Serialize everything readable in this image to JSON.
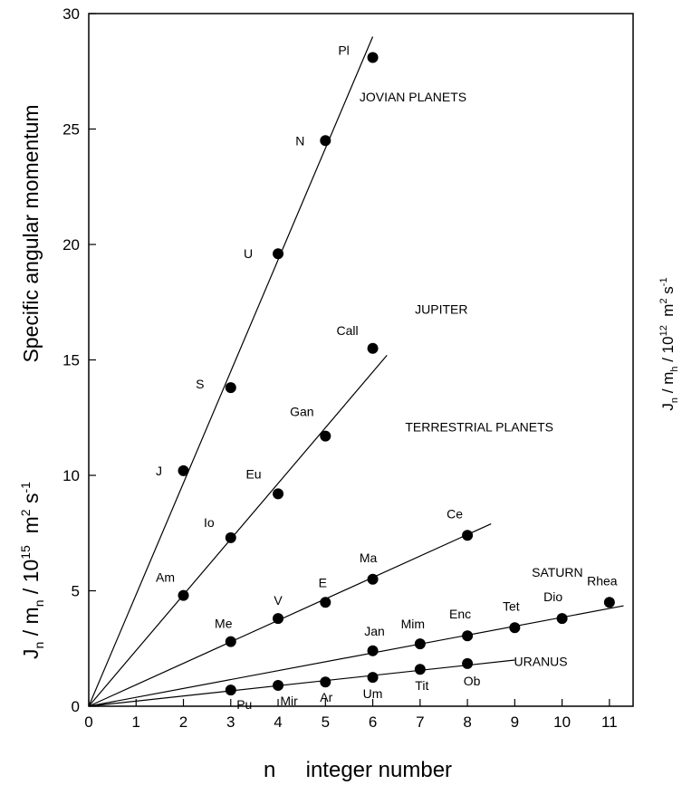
{
  "chart_data": {
    "type": "scatter",
    "title": "",
    "xlabel": "n     integer number",
    "ylabel": "Specific angular momentum",
    "ylabel_unit": {
      "base": "J",
      "sub": "n",
      "slash": " / m",
      "sub2": "n",
      "mid": " / 10",
      "exp": "15",
      "m": "  m",
      "m_exp": "2",
      "s": " s",
      "s_exp": "-1"
    },
    "ylabel_right": {
      "base": "J",
      "sub": "n",
      "slash": " / m",
      "sub2": "h",
      "mid": " / 10",
      "exp": "12",
      "m": "  m",
      "m_exp": "2",
      "s": " s",
      "s_exp": "-1"
    },
    "xlim": [
      0,
      11.5
    ],
    "ylim": [
      0,
      30
    ],
    "xticks": [
      0,
      1,
      2,
      3,
      4,
      5,
      6,
      7,
      8,
      9,
      10,
      11
    ],
    "yticks": [
      0,
      5,
      10,
      15,
      20,
      25,
      30
    ],
    "grid": false,
    "series": [
      {
        "name": "JOVIAN PLANETS",
        "points": [
          {
            "label": "J",
            "x": 2,
            "y": 10.2
          },
          {
            "label": "S",
            "x": 3,
            "y": 13.8
          },
          {
            "label": "U",
            "x": 4,
            "y": 19.6
          },
          {
            "label": "N",
            "x": 5,
            "y": 24.5
          },
          {
            "label": "Pl",
            "x": 6,
            "y": 28.1
          }
        ],
        "fit_line": {
          "x": [
            0,
            6
          ],
          "y": [
            0,
            29
          ]
        }
      },
      {
        "name": "JUPITER",
        "points": [
          {
            "label": "Am",
            "x": 2,
            "y": 4.8
          },
          {
            "label": "Io",
            "x": 3,
            "y": 7.3
          },
          {
            "label": "Eu",
            "x": 4,
            "y": 9.2
          },
          {
            "label": "Gan",
            "x": 5,
            "y": 11.7
          },
          {
            "label": "Call",
            "x": 6,
            "y": 15.5
          }
        ],
        "fit_line": {
          "x": [
            0,
            6.3
          ],
          "y": [
            0,
            15.2
          ]
        }
      },
      {
        "name": "TERRESTRIAL PLANETS",
        "points": [
          {
            "label": "Me",
            "x": 3,
            "y": 2.8
          },
          {
            "label": "V",
            "x": 4,
            "y": 3.8
          },
          {
            "label": "E",
            "x": 5,
            "y": 4.5
          },
          {
            "label": "Ma",
            "x": 6,
            "y": 5.5
          },
          {
            "label": "Ce",
            "x": 8,
            "y": 7.4
          }
        ],
        "fit_line": {
          "x": [
            0,
            8.5
          ],
          "y": [
            0,
            7.9
          ]
        }
      },
      {
        "name": "SATURN",
        "points": [
          {
            "label": "Jan",
            "x": 6,
            "y": 2.4
          },
          {
            "label": "Mim",
            "x": 7,
            "y": 2.7
          },
          {
            "label": "Enc",
            "x": 8,
            "y": 3.05
          },
          {
            "label": "Tet",
            "x": 9,
            "y": 3.4
          },
          {
            "label": "Dio",
            "x": 10,
            "y": 3.8
          },
          {
            "label": "Rhea",
            "x": 11,
            "y": 4.5
          }
        ],
        "fit_line": {
          "x": [
            0,
            11.3
          ],
          "y": [
            0,
            4.35
          ]
        }
      },
      {
        "name": "URANUS",
        "points": [
          {
            "label": "Pu",
            "x": 3,
            "y": 0.7
          },
          {
            "label": "Mir",
            "x": 4,
            "y": 0.9
          },
          {
            "label": "Ar",
            "x": 5,
            "y": 1.05
          },
          {
            "label": "Um",
            "x": 6,
            "y": 1.25
          },
          {
            "label": "Tit",
            "x": 7,
            "y": 1.6
          },
          {
            "label": "Ob",
            "x": 8,
            "y": 1.85
          }
        ],
        "fit_line": {
          "x": [
            0,
            9
          ],
          "y": [
            0,
            2
          ]
        }
      }
    ]
  }
}
